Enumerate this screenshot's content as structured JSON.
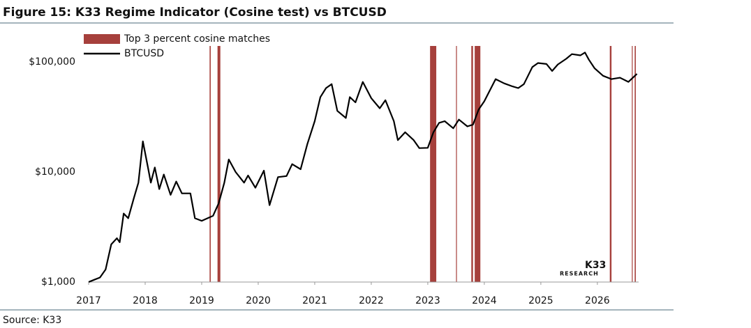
{
  "chart_data": {
    "type": "line",
    "title": "Figure 15: K33 Regime Indicator (Cosine test) vs BTCUSD",
    "source": "Source: K33",
    "watermark": {
      "name": "K33",
      "subtitle": "RESEARCH"
    },
    "log_y": true,
    "xlim": [
      2017,
      2026.73
    ],
    "xticks": [
      2017,
      2018,
      2019,
      2020,
      2021,
      2022,
      2023,
      2024,
      2025,
      2026
    ],
    "ylim": [
      1000,
      140000
    ],
    "yticks": [
      {
        "value": 1000,
        "label": "$1,000"
      },
      {
        "value": 10000,
        "label": "$10,000"
      },
      {
        "value": 100000,
        "label": "$100,000"
      }
    ],
    "legend": "top-left",
    "series": [
      {
        "name": "Top 3 percent cosine matches",
        "type": "band",
        "color": "#a6403c",
        "bands": [
          [
            2019.14,
            2019.16
          ],
          [
            2019.28,
            2019.33
          ],
          [
            2023.04,
            2023.15
          ],
          [
            2023.5,
            2023.51
          ],
          [
            2023.77,
            2023.8
          ],
          [
            2023.83,
            2023.93
          ],
          [
            2026.22,
            2026.25
          ],
          [
            2026.61,
            2026.62
          ],
          [
            2026.66,
            2026.68
          ]
        ]
      },
      {
        "name": "BTCUSD",
        "type": "line",
        "color": "#000000",
        "x": [
          2017.0,
          2017.1,
          2017.2,
          2017.3,
          2017.4,
          2017.5,
          2017.55,
          2017.62,
          2017.7,
          2017.8,
          2017.88,
          2017.96,
          2018.05,
          2018.1,
          2018.17,
          2018.25,
          2018.33,
          2018.45,
          2018.55,
          2018.65,
          2018.8,
          2018.88,
          2019.0,
          2019.2,
          2019.3,
          2019.4,
          2019.48,
          2019.6,
          2019.75,
          2019.82,
          2019.95,
          2020.1,
          2020.2,
          2020.35,
          2020.5,
          2020.6,
          2020.75,
          2020.87,
          2021.0,
          2021.1,
          2021.2,
          2021.3,
          2021.4,
          2021.55,
          2021.62,
          2021.72,
          2021.85,
          2022.0,
          2022.15,
          2022.25,
          2022.4,
          2022.47,
          2022.6,
          2022.75,
          2022.85,
          2023.0,
          2023.1,
          2023.2,
          2023.3,
          2023.45,
          2023.55,
          2023.7,
          2023.8,
          2023.9,
          2024.0,
          2024.2,
          2024.35,
          2024.5,
          2024.6,
          2024.7,
          2024.85,
          2024.95,
          2025.1,
          2025.2,
          2025.3,
          2025.45,
          2025.55,
          2025.7,
          2025.78,
          2025.85,
          2025.95,
          2026.1,
          2026.25,
          2026.4,
          2026.55,
          2026.7
        ],
        "values": [
          1000,
          1050,
          1100,
          1300,
          2200,
          2500,
          2300,
          4200,
          3800,
          5800,
          8000,
          19000,
          11000,
          8000,
          11000,
          7000,
          9500,
          6200,
          8200,
          6400,
          6400,
          3800,
          3600,
          4000,
          5200,
          8000,
          13000,
          10000,
          8000,
          9300,
          7200,
          10300,
          5000,
          9000,
          9200,
          11800,
          10600,
          18000,
          29000,
          48000,
          58000,
          63000,
          36000,
          31000,
          48000,
          43000,
          66000,
          47000,
          38000,
          45000,
          29000,
          19500,
          23000,
          19500,
          16500,
          16600,
          23000,
          28000,
          29000,
          25000,
          30000,
          26000,
          27000,
          37000,
          44000,
          70000,
          64000,
          60000,
          58000,
          63000,
          90000,
          98000,
          96000,
          83000,
          95000,
          107000,
          118000,
          115000,
          122000,
          105000,
          88000,
          75000,
          70000,
          72000,
          66000,
          78000
        ]
      }
    ]
  }
}
